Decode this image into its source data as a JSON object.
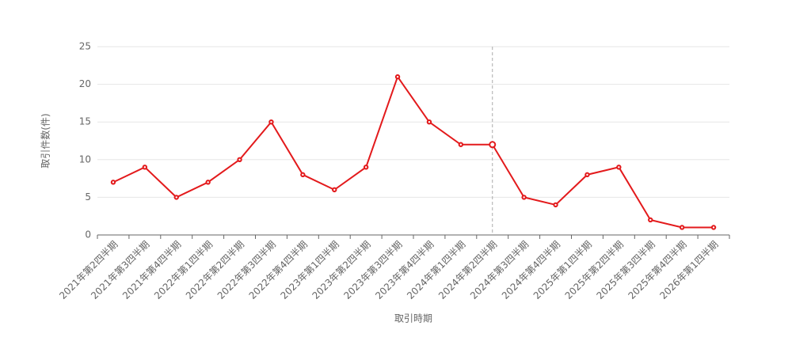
{
  "chart_data": {
    "type": "line",
    "x_label": "取引時期",
    "y_label": "取引件数(件)",
    "categories": [
      "2021年第2四半期",
      "2021年第3四半期",
      "2021年第4四半期",
      "2022年第1四半期",
      "2022年第2四半期",
      "2022年第3四半期",
      "2022年第4四半期",
      "2023年第1四半期",
      "2023年第2四半期",
      "2023年第3四半期",
      "2023年第4四半期",
      "2024年第1四半期",
      "2024年第2四半期",
      "2024年第3四半期",
      "2024年第4四半期",
      "2025年第1四半期",
      "2025年第2四半期",
      "2025年第3四半期",
      "2025年第4四半期",
      "2026年第1四半期"
    ],
    "values": [
      7,
      9,
      5,
      7,
      10,
      15,
      8,
      6,
      9,
      21,
      15,
      12,
      12,
      5,
      4,
      8,
      9,
      2,
      1,
      1
    ],
    "color": "#e31a1c",
    "ylim": [
      0,
      25
    ],
    "yticks": [
      0,
      5,
      10,
      15,
      20,
      25
    ],
    "grid": true
  }
}
